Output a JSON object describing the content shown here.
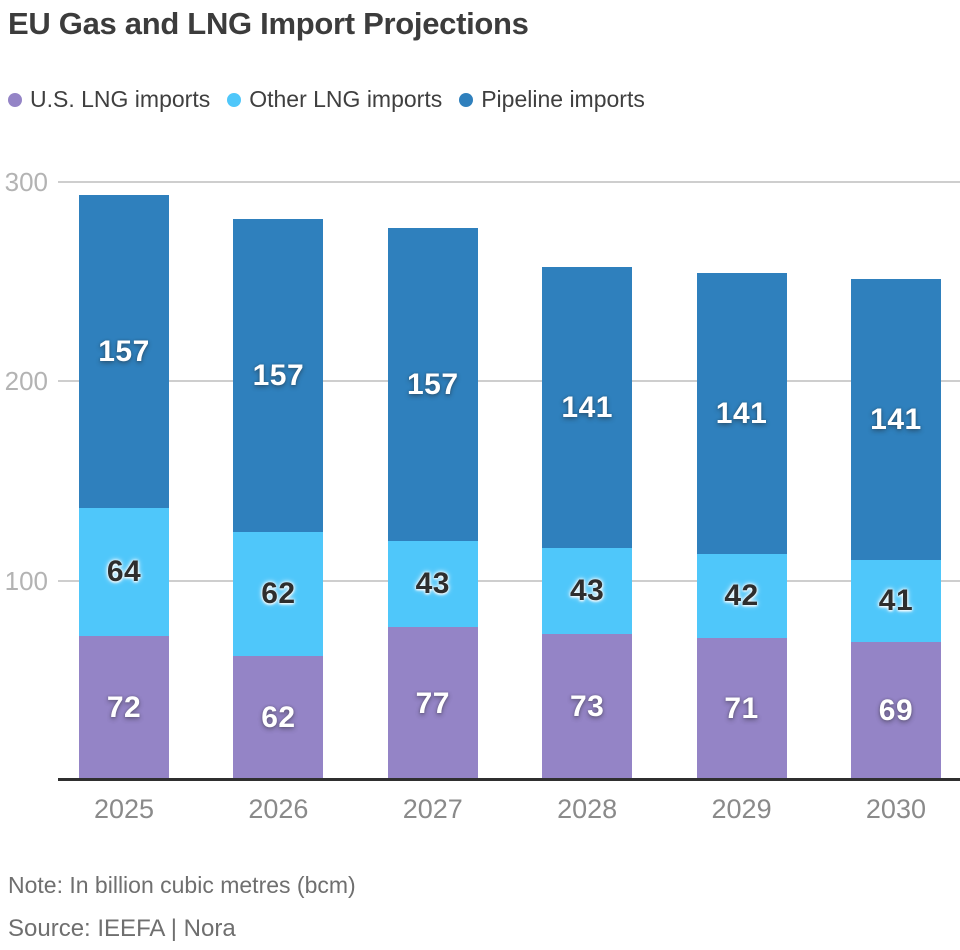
{
  "title": "EU Gas and LNG Import Projections",
  "note": "Note: In billion cubic metres (bcm)",
  "source": "Source: IEEFA | Nora",
  "colors": {
    "grid": "#cecece",
    "axis_line": "#2f2f2f",
    "ytick_label": "#b3b3b3",
    "xtick_label": "#8a8a8a",
    "title_text": "#3c3c3c",
    "footnote_text": "#6f6f6f"
  },
  "chart_data": {
    "type": "bar",
    "stacked": true,
    "title": "EU Gas and LNG Import Projections",
    "categories": [
      "2025",
      "2026",
      "2027",
      "2028",
      "2029",
      "2030"
    ],
    "series": [
      {
        "name": "U.S. LNG imports",
        "color": "#9484c6",
        "label_color": "#ffffff",
        "values": [
          72,
          62,
          77,
          73,
          71,
          69
        ]
      },
      {
        "name": "Other LNG imports",
        "color": "#4fc7fa",
        "label_color": "#2e2e2e",
        "values": [
          64,
          62,
          43,
          43,
          42,
          41
        ]
      },
      {
        "name": "Pipeline imports",
        "color": "#2f80bd",
        "label_color": "#ffffff",
        "values": [
          157,
          157,
          157,
          141,
          141,
          141
        ]
      }
    ],
    "totals": [
      293,
      281,
      277,
      257,
      254,
      251
    ],
    "xlabel": "",
    "ylabel": "",
    "unit": "bcm",
    "yticks": [
      100,
      200,
      300
    ],
    "ylim": [
      0,
      300
    ],
    "grid": true,
    "legend_position": "top"
  }
}
